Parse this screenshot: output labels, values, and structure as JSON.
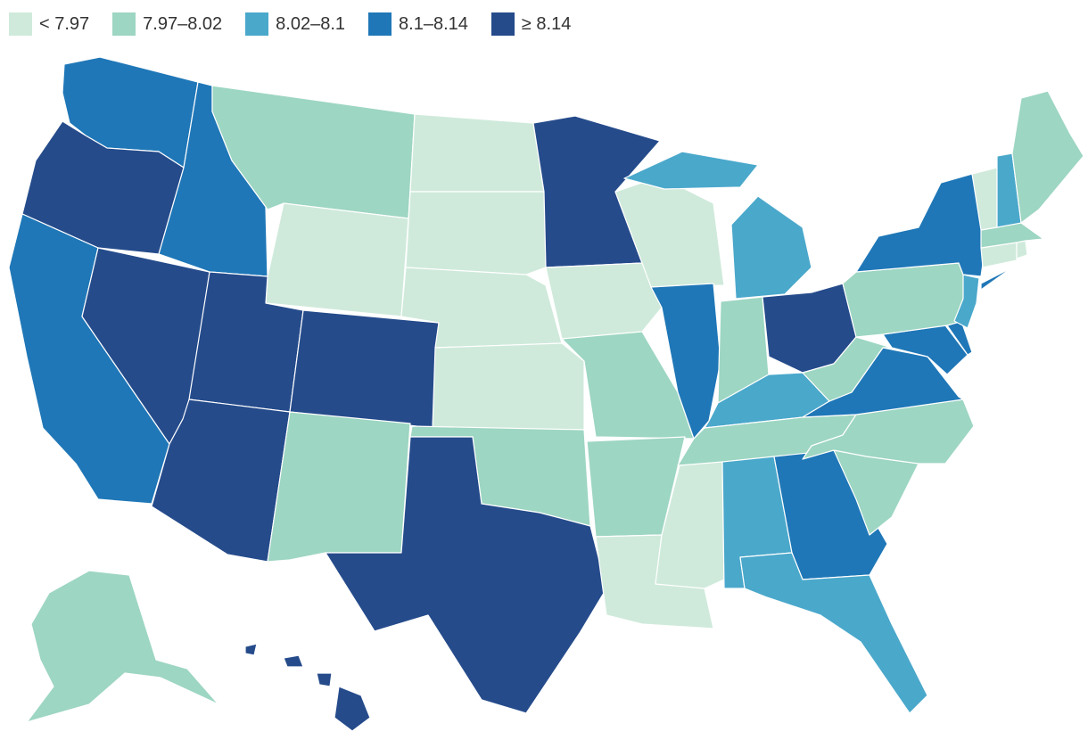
{
  "legend": [
    {
      "label": "< 7.97",
      "color": "#cfeadb"
    },
    {
      "label": "7.97–8.02",
      "color": "#9dd6c2"
    },
    {
      "label": "8.02–8.1",
      "color": "#4aa8cb"
    },
    {
      "label": "8.1–8.14",
      "color": "#1f77b7"
    },
    {
      "label": "≥ 8.14",
      "color": "#254b8b"
    }
  ],
  "states": {
    "WA": 3,
    "OR": 4,
    "CA": 3,
    "ID": 3,
    "NV": 4,
    "MT": 1,
    "WY": 0,
    "UT": 4,
    "AZ": 4,
    "CO": 4,
    "NM": 1,
    "ND": 0,
    "SD": 0,
    "NE": 0,
    "KS": 0,
    "OK": 1,
    "TX": 4,
    "MN": 4,
    "IA": 0,
    "MO": 1,
    "AR": 1,
    "LA": 0,
    "WI": 0,
    "IL": 3,
    "MI": 2,
    "IN": 1,
    "OH": 4,
    "KY": 2,
    "TN": 1,
    "MS": 0,
    "AL": 2,
    "GA": 3,
    "FL": 2,
    "SC": 1,
    "NC": 1,
    "VA": 3,
    "WV": 1,
    "MD": 3,
    "DE": 3,
    "PA": 1,
    "NJ": 2,
    "NY": 3,
    "CT": 0,
    "RI": 0,
    "MA": 1,
    "VT": 0,
    "NH": 2,
    "ME": 1,
    "AK": 1,
    "HI": 4
  }
}
